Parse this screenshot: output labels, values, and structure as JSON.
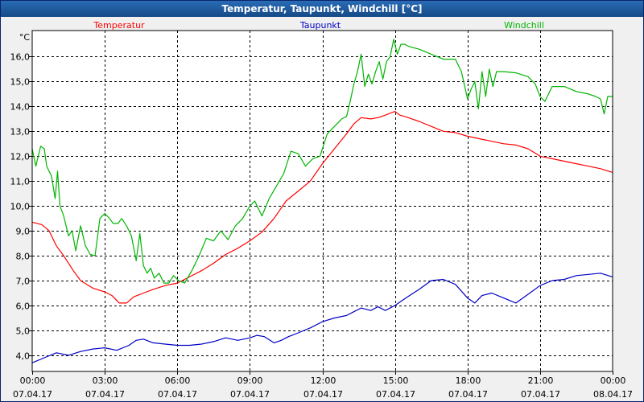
{
  "window": {
    "title": "Temperatur, Taupunkt, Windchill [°C]"
  },
  "colors": {
    "temperature": "#ff0000",
    "dewpoint": "#0000c8",
    "windchill": "#00b400",
    "grid": "#000000",
    "plot_bg": "#ffffff"
  },
  "chart_data": {
    "type": "line",
    "title": "Temperatur, Taupunkt, Windchill [°C]",
    "ylabel": "°C",
    "xlabel": "",
    "ylim": [
      3.35,
      17.05
    ],
    "xlim": [
      0,
      24
    ],
    "grid": true,
    "legend": "top",
    "y_ticks": [
      4.0,
      5.0,
      6.0,
      7.0,
      8.0,
      9.0,
      10.0,
      11.0,
      12.0,
      13.0,
      14.0,
      15.0,
      16.0
    ],
    "y_tick_labels": [
      "4,0",
      "5,0",
      "6,0",
      "7,0",
      "8,0",
      "9,0",
      "10,0",
      "11,0",
      "12,0",
      "13,0",
      "14,0",
      "15,0",
      "16,0"
    ],
    "x_ticks": [
      {
        "x": 0,
        "time": "00:00",
        "date": "07.04.17"
      },
      {
        "x": 3,
        "time": "03:00",
        "date": "07.04.17"
      },
      {
        "x": 6,
        "time": "06:00",
        "date": "07.04.17"
      },
      {
        "x": 9,
        "time": "09:00",
        "date": "07.04.17"
      },
      {
        "x": 12,
        "time": "12:00",
        "date": "07.04.17"
      },
      {
        "x": 15,
        "time": "15:00",
        "date": "07.04.17"
      },
      {
        "x": 18,
        "time": "18:00",
        "date": "07.04.17"
      },
      {
        "x": 21,
        "time": "21:00",
        "date": "07.04.17"
      },
      {
        "x": 24,
        "time": "00:00",
        "date": "08.04.17"
      }
    ],
    "series": [
      {
        "name": "Temperatur",
        "color": "#ff0000",
        "x": [
          0,
          0.4,
          0.7,
          1.0,
          1.3,
          1.7,
          2.0,
          2.5,
          3.0,
          3.3,
          3.6,
          3.9,
          4.2,
          4.6,
          5.0,
          5.5,
          6.0,
          6.5,
          7.0,
          7.5,
          8.0,
          8.5,
          9.0,
          9.5,
          10.0,
          10.5,
          11.0,
          11.5,
          12.0,
          12.5,
          13.0,
          13.3,
          13.6,
          14.0,
          14.3,
          14.6,
          15.0,
          15.2,
          15.4,
          15.7,
          16.0,
          16.5,
          17.0,
          17.5,
          18.0,
          18.5,
          19.0,
          19.5,
          20.0,
          20.5,
          21.0,
          21.5,
          22.0,
          22.5,
          23.0,
          23.5,
          24.0
        ],
        "y": [
          9.35,
          9.25,
          9.0,
          8.4,
          8.0,
          7.4,
          7.0,
          6.7,
          6.55,
          6.4,
          6.1,
          6.1,
          6.35,
          6.5,
          6.65,
          6.8,
          6.9,
          7.15,
          7.4,
          7.7,
          8.05,
          8.3,
          8.6,
          8.95,
          9.5,
          10.2,
          10.6,
          11.0,
          11.7,
          12.3,
          12.9,
          13.3,
          13.55,
          13.5,
          13.55,
          13.65,
          13.8,
          13.65,
          13.6,
          13.5,
          13.4,
          13.2,
          13.0,
          12.95,
          12.8,
          12.7,
          12.6,
          12.5,
          12.45,
          12.3,
          12.0,
          11.9,
          11.8,
          11.7,
          11.6,
          11.5,
          11.35
        ]
      },
      {
        "name": "Taupunkt",
        "color": "#0000c8",
        "x": [
          0,
          0.5,
          1.0,
          1.5,
          2.0,
          2.5,
          3.0,
          3.5,
          4.0,
          4.3,
          4.6,
          5.0,
          5.5,
          6.0,
          6.5,
          7.0,
          7.5,
          8.0,
          8.5,
          9.0,
          9.3,
          9.6,
          10.0,
          10.3,
          10.6,
          11.0,
          11.5,
          12.0,
          12.5,
          13.0,
          13.3,
          13.6,
          14.0,
          14.3,
          14.6,
          15.0,
          15.3,
          15.6,
          16.0,
          16.5,
          17.0,
          17.5,
          18.0,
          18.3,
          18.6,
          19.0,
          19.5,
          20.0,
          20.5,
          21.0,
          21.5,
          22.0,
          22.5,
          23.0,
          23.5,
          24.0
        ],
        "y": [
          3.7,
          3.9,
          4.1,
          4.0,
          4.15,
          4.25,
          4.3,
          4.2,
          4.4,
          4.6,
          4.65,
          4.5,
          4.45,
          4.4,
          4.4,
          4.45,
          4.55,
          4.7,
          4.6,
          4.7,
          4.8,
          4.75,
          4.5,
          4.6,
          4.75,
          4.9,
          5.1,
          5.35,
          5.5,
          5.6,
          5.75,
          5.9,
          5.8,
          5.95,
          5.8,
          6.0,
          6.2,
          6.4,
          6.65,
          7.0,
          7.05,
          6.85,
          6.3,
          6.1,
          6.4,
          6.5,
          6.3,
          6.1,
          6.45,
          6.8,
          7.0,
          7.05,
          7.2,
          7.25,
          7.3,
          7.15
        ]
      },
      {
        "name": "Windchill",
        "color": "#00b400",
        "x": [
          0,
          0.15,
          0.35,
          0.5,
          0.6,
          0.8,
          0.95,
          1.05,
          1.15,
          1.3,
          1.5,
          1.65,
          1.8,
          2.0,
          2.2,
          2.4,
          2.6,
          2.8,
          3.0,
          3.2,
          3.35,
          3.55,
          3.7,
          3.9,
          4.1,
          4.3,
          4.45,
          4.6,
          4.75,
          4.9,
          5.05,
          5.25,
          5.45,
          5.65,
          5.85,
          6.05,
          6.3,
          6.6,
          6.9,
          7.2,
          7.5,
          7.8,
          8.1,
          8.4,
          8.7,
          9.0,
          9.2,
          9.5,
          9.8,
          10.1,
          10.4,
          10.7,
          11.0,
          11.3,
          11.6,
          11.9,
          12.2,
          12.5,
          12.8,
          13.0,
          13.15,
          13.3,
          13.45,
          13.6,
          13.75,
          13.9,
          14.05,
          14.2,
          14.35,
          14.5,
          14.65,
          14.8,
          14.95,
          15.1,
          15.25,
          15.4,
          15.6,
          16.0,
          16.5,
          17.0,
          17.5,
          17.75,
          18.0,
          18.15,
          18.3,
          18.45,
          18.6,
          18.75,
          18.9,
          19.05,
          19.2,
          19.5,
          20.0,
          20.5,
          20.8,
          21.0,
          21.2,
          21.5,
          22.0,
          22.5,
          23.0,
          23.3,
          23.5,
          23.65,
          23.8,
          24.0
        ],
        "y": [
          12.3,
          11.6,
          12.4,
          12.3,
          11.6,
          11.2,
          10.3,
          11.4,
          10.0,
          9.6,
          8.8,
          9.0,
          8.2,
          9.2,
          8.4,
          8.05,
          8.0,
          9.5,
          9.7,
          9.5,
          9.3,
          9.3,
          9.5,
          9.2,
          8.8,
          7.8,
          8.9,
          7.6,
          7.3,
          7.5,
          7.1,
          7.3,
          6.9,
          6.9,
          7.2,
          7.0,
          6.9,
          7.4,
          8.0,
          8.7,
          8.6,
          9.0,
          8.65,
          9.2,
          9.5,
          10.0,
          10.2,
          9.6,
          10.3,
          10.8,
          11.3,
          12.2,
          12.1,
          11.6,
          11.9,
          12.0,
          12.9,
          13.2,
          13.5,
          13.6,
          14.2,
          14.9,
          15.4,
          16.1,
          14.8,
          15.3,
          14.9,
          15.4,
          15.8,
          15.1,
          15.8,
          16.0,
          16.7,
          16.1,
          16.5,
          16.5,
          16.4,
          16.3,
          16.1,
          15.9,
          15.9,
          15.4,
          14.3,
          14.7,
          15.0,
          13.9,
          15.4,
          14.4,
          15.5,
          14.8,
          15.4,
          15.4,
          15.35,
          15.2,
          14.9,
          14.4,
          14.2,
          14.8,
          14.8,
          14.6,
          14.5,
          14.4,
          14.3,
          13.7,
          14.4,
          14.4
        ]
      }
    ]
  }
}
